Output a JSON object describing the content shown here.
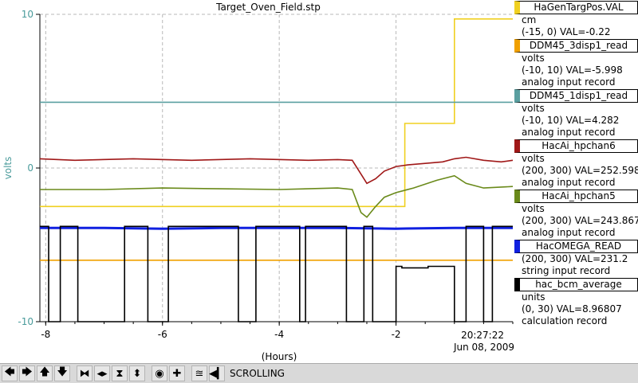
{
  "chart_data": {
    "type": "line",
    "title": "Target_Oven_Field.stp",
    "xlabel": "(Hours)",
    "ylabel": "volts",
    "xlim": [
      -8.1,
      0
    ],
    "ylim": [
      -10,
      10
    ],
    "x_ticks": [
      "-8",
      "-6",
      "-4",
      "-2"
    ],
    "y_ticks": [
      "10",
      "0",
      "-10"
    ],
    "x_tick_values": [
      -8,
      -6,
      -4,
      -2
    ],
    "y_tick_values": [
      10,
      0,
      -10
    ],
    "grid": true,
    "timestamp_time": "20:27:22",
    "timestamp_date": "Jun 08, 2009",
    "series": [
      {
        "name": "HaGenTargPos.VAL",
        "color": "#f0d020",
        "x": [
          -8.1,
          -1.85,
          -1.85,
          -1.0,
          -1.0,
          0
        ],
        "y": [
          -2.5,
          -2.5,
          2.9,
          2.9,
          9.7,
          9.7
        ]
      },
      {
        "name": "DDM45_3disp1_read",
        "color": "#f0a000",
        "x": [
          -8.1,
          0
        ],
        "y": [
          -6.0,
          -6.0
        ]
      },
      {
        "name": "DDM45_1disp1_read",
        "color": "#5a9fa0",
        "x": [
          -8.1,
          0
        ],
        "y": [
          4.28,
          4.28
        ]
      },
      {
        "name": "HacAi_hpchan6",
        "color": "#a01818",
        "x": [
          -8.1,
          -7.5,
          -6.5,
          -5.5,
          -4.5,
          -3.5,
          -3.0,
          -2.75,
          -2.6,
          -2.5,
          -2.35,
          -2.2,
          -2.0,
          -1.8,
          -1.5,
          -1.2,
          -1.0,
          -0.8,
          -0.5,
          -0.2,
          0
        ],
        "y": [
          0.6,
          0.5,
          0.6,
          0.5,
          0.6,
          0.5,
          0.55,
          0.5,
          -0.4,
          -1.0,
          -0.7,
          -0.2,
          0.1,
          0.2,
          0.3,
          0.4,
          0.6,
          0.7,
          0.5,
          0.4,
          0.5
        ]
      },
      {
        "name": "HacAi_hpchan5",
        "color": "#6a8a1a",
        "x": [
          -8.1,
          -7.0,
          -6.0,
          -5.0,
          -4.0,
          -3.0,
          -2.75,
          -2.6,
          -2.5,
          -2.35,
          -2.2,
          -2.0,
          -1.7,
          -1.3,
          -1.0,
          -0.8,
          -0.5,
          0
        ],
        "y": [
          -1.4,
          -1.4,
          -1.3,
          -1.35,
          -1.4,
          -1.3,
          -1.4,
          -2.9,
          -3.2,
          -2.5,
          -1.9,
          -1.6,
          -1.3,
          -0.8,
          -0.5,
          -1.0,
          -1.3,
          -1.2
        ]
      },
      {
        "name": "HacOMEGA_READ",
        "color": "#1020e0",
        "x": [
          -8.1,
          -7.0,
          -6.0,
          -5.0,
          -4.0,
          -3.0,
          -2.0,
          -1.0,
          0
        ],
        "y": [
          -3.9,
          -3.9,
          -3.95,
          -3.9,
          -3.9,
          -3.9,
          -3.95,
          -3.9,
          -3.9
        ]
      },
      {
        "name": "hac_bcm_average",
        "color": "#000000",
        "x": [
          -8.1,
          -7.95,
          -7.95,
          -7.75,
          -7.75,
          -7.45,
          -7.45,
          -6.65,
          -6.65,
          -6.25,
          -6.25,
          -5.9,
          -5.9,
          -4.7,
          -4.7,
          -4.4,
          -4.4,
          -3.65,
          -3.65,
          -3.55,
          -3.55,
          -2.85,
          -2.85,
          -2.55,
          -2.55,
          -2.4,
          -2.4,
          -2.0,
          -2.0,
          -1.9,
          -1.9,
          -1.45,
          -1.45,
          -1.0,
          -1.0,
          -0.8,
          -0.8,
          -0.5,
          -0.5,
          -0.35,
          -0.35,
          0
        ],
        "y": [
          -3.8,
          -3.8,
          -10,
          -10,
          -3.8,
          -3.8,
          -10,
          -10,
          -3.8,
          -3.8,
          -10,
          -10,
          -3.8,
          -3.8,
          -10,
          -10,
          -3.8,
          -3.8,
          -10,
          -10,
          -3.8,
          -3.8,
          -10,
          -10,
          -3.8,
          -3.8,
          -10,
          -10,
          -6.4,
          -6.4,
          -6.5,
          -6.5,
          -6.4,
          -6.4,
          -10,
          -10,
          -3.8,
          -3.8,
          -10,
          -10,
          -3.8,
          -3.8
        ]
      }
    ]
  },
  "legend": [
    {
      "name": "HaGenTargPos.VAL",
      "color": "#f0d020",
      "lines": [
        "cm",
        "(-15, 0) VAL=-0.22"
      ]
    },
    {
      "name": "DDM45_3disp1_read",
      "color": "#f0a000",
      "lines": [
        "volts",
        "(-10, 10) VAL=-5.998",
        "analog input record"
      ]
    },
    {
      "name": "DDM45_1disp1_read",
      "color": "#5a9fa0",
      "lines": [
        "volts",
        "(-10, 10) VAL=4.282",
        "analog input record"
      ]
    },
    {
      "name": "HacAi_hpchan6",
      "color": "#a01818",
      "lines": [
        "volts",
        "(200, 300) VAL=252.598",
        "analog input record"
      ]
    },
    {
      "name": "HacAi_hpchan5",
      "color": "#6a8a1a",
      "lines": [
        "volts",
        "(200, 300) VAL=243.867",
        "analog input record"
      ]
    },
    {
      "name": "HacOMEGA_READ",
      "color": "#1020e0",
      "lines": [
        "(200, 300) VAL=231.2",
        "string input record"
      ]
    },
    {
      "name": "hac_bcm_average",
      "color": "#000000",
      "lines": [
        "units",
        "(0, 30) VAL=8.96807",
        "calculation record"
      ]
    }
  ],
  "toolbar": {
    "buttons": [
      {
        "name": "scroll-left-button",
        "icon": "arrow-left-icon",
        "glyph": "🡄"
      },
      {
        "name": "scroll-right-button",
        "icon": "arrow-right-icon",
        "glyph": "🡆"
      },
      {
        "name": "scroll-up-button",
        "icon": "arrow-up-icon",
        "glyph": "🡅"
      },
      {
        "name": "scroll-down-button",
        "icon": "arrow-down-icon",
        "glyph": "🡇"
      },
      {
        "name": "zoom-in-x-button",
        "icon": "zoom-in-x-icon",
        "glyph": "⧓"
      },
      {
        "name": "zoom-out-x-button",
        "icon": "zoom-out-x-icon",
        "glyph": "◂▸"
      },
      {
        "name": "zoom-in-y-button",
        "icon": "zoom-in-y-icon",
        "glyph": "⧗"
      },
      {
        "name": "zoom-out-y-button",
        "icon": "zoom-out-y-icon",
        "glyph": "⬍"
      },
      {
        "name": "auto-scale-button",
        "icon": "auto-scale-icon",
        "glyph": "◉"
      },
      {
        "name": "add-button",
        "icon": "plus-icon",
        "glyph": "✚"
      },
      {
        "name": "config-button",
        "icon": "config-icon",
        "glyph": "≊"
      },
      {
        "name": "back-button",
        "icon": "back-icon",
        "glyph": "◀▎"
      }
    ],
    "status": "SCROLLING"
  }
}
